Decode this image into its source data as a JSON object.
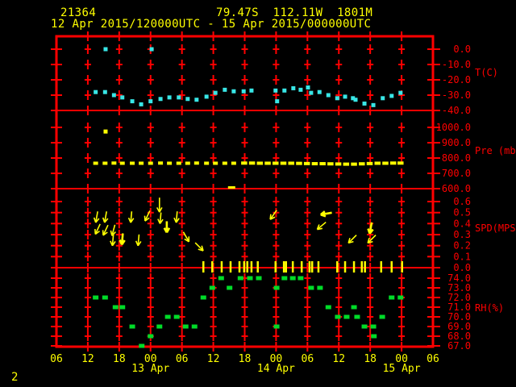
{
  "header": {
    "station_id": "21364",
    "location": "79.47S  112.11W  1801M",
    "time_range": "12 Apr 2015/120000UTC - 15 Apr 2015/000000UTC"
  },
  "footer": {
    "page_number": "2"
  },
  "colors": {
    "background": "#000000",
    "grid": "#ff0000",
    "axis_text": "#ff0000",
    "label_text": "#ffff00",
    "temperature": "#38e6e6",
    "pressure": "#ffff00",
    "wind": "#ffff00",
    "humidity": "#00dc28"
  },
  "x_axis": {
    "unit_note": "hours since 12 Apr 2015 00:00 UTC; axis spans 12 Apr 06h to 15 Apr 06h",
    "hours_start": 6,
    "hours_end": 78,
    "hour_labels": [
      "06",
      "12",
      "18",
      "00",
      "06",
      "12",
      "18",
      "00",
      "06",
      "12",
      "18",
      "00",
      "06"
    ],
    "date_labels": [
      {
        "label": "13 Apr",
        "hour": 24
      },
      {
        "label": "14 Apr",
        "hour": 48
      },
      {
        "label": "15 Apr",
        "hour": 72
      }
    ]
  },
  "panels": [
    {
      "id": "temperature",
      "label": "T(C)",
      "ticks": [
        "0.0",
        "-10.0",
        "-20.0",
        "-30.0",
        "-40.0"
      ]
    },
    {
      "id": "pressure",
      "label": "Pre (mb)",
      "ticks": [
        "1000.0",
        "900.0",
        "800.0",
        "700.0",
        "600.0"
      ]
    },
    {
      "id": "wind_speed",
      "label": "SPD(MPS)",
      "ticks": [
        "0.6",
        "0.5",
        "0.4",
        "0.3",
        "0.2",
        "0.1",
        "0.0"
      ]
    },
    {
      "id": "humidity",
      "label": "RH(%)",
      "ticks": [
        "74.0",
        "73.0",
        "72.0",
        "71.0",
        "70.0",
        "69.0",
        "68.0",
        "67.0"
      ]
    }
  ],
  "chart_data": [
    {
      "type": "scatter",
      "series": "temperature",
      "ylabel": "T(C)",
      "ylim": [
        -40,
        0
      ],
      "x_unit": "hours since 12 Apr 00UTC",
      "points": [
        [
          13.5,
          -28
        ],
        [
          15.3,
          -28
        ],
        [
          17.0,
          -30
        ],
        [
          18.6,
          -31.5
        ],
        [
          20.5,
          -34
        ],
        [
          22.2,
          -36
        ],
        [
          24.0,
          -34
        ],
        [
          25.9,
          -32.5
        ],
        [
          27.6,
          -31.5
        ],
        [
          29.4,
          -31.5
        ],
        [
          31.1,
          -32.5
        ],
        [
          32.8,
          -33
        ],
        [
          34.7,
          -31
        ],
        [
          36.4,
          -28.5
        ],
        [
          38.2,
          -26.5
        ],
        [
          39.9,
          -27.5
        ],
        [
          41.8,
          -27.5
        ],
        [
          43.3,
          -27
        ],
        [
          47.9,
          -27
        ],
        [
          48.2,
          -34
        ],
        [
          49.6,
          -27
        ],
        [
          51.3,
          -25.5
        ],
        [
          52.7,
          -26.5
        ],
        [
          54.1,
          -25
        ],
        [
          54.7,
          -28.5
        ],
        [
          56.3,
          -28
        ],
        [
          58.0,
          -30
        ],
        [
          59.7,
          -32
        ],
        [
          61.2,
          -31
        ],
        [
          62.7,
          -32
        ],
        [
          63.2,
          -33
        ],
        [
          64.9,
          -35.5
        ],
        [
          66.6,
          -36.5
        ],
        [
          68.4,
          -32
        ],
        [
          70.1,
          -30.5
        ],
        [
          71.8,
          -28.5
        ]
      ],
      "outliers": [
        [
          15.4,
          0
        ],
        [
          24.2,
          0
        ]
      ]
    },
    {
      "type": "scatter",
      "series": "pressure",
      "ylabel": "Pre (mb)",
      "ylim": [
        600,
        1000
      ],
      "x_unit": "hours since 12 Apr 00UTC",
      "points": [
        [
          13.5,
          766
        ],
        [
          15.3,
          766
        ],
        [
          17.0,
          767
        ],
        [
          18.6,
          766
        ],
        [
          20.5,
          766
        ],
        [
          22.2,
          766
        ],
        [
          24.0,
          766
        ],
        [
          25.9,
          767
        ],
        [
          27.6,
          766
        ],
        [
          29.4,
          766
        ],
        [
          31.1,
          766
        ],
        [
          32.8,
          767
        ],
        [
          34.7,
          766
        ],
        [
          36.4,
          766
        ],
        [
          38.2,
          766
        ],
        [
          39.9,
          766
        ],
        [
          41.9,
          767
        ],
        [
          43.4,
          767
        ],
        [
          44.9,
          766
        ],
        [
          46.4,
          766
        ],
        [
          47.9,
          766
        ],
        [
          49.4,
          766
        ],
        [
          50.9,
          766
        ],
        [
          52.4,
          765
        ],
        [
          53.9,
          764
        ],
        [
          55.4,
          763
        ],
        [
          56.9,
          763
        ],
        [
          58.4,
          762
        ],
        [
          59.9,
          761
        ],
        [
          61.4,
          760
        ],
        [
          62.9,
          760
        ],
        [
          64.4,
          762
        ],
        [
          65.9,
          764
        ],
        [
          67.4,
          766
        ],
        [
          68.9,
          766
        ],
        [
          70.4,
          767
        ],
        [
          71.8,
          767
        ]
      ],
      "outliers": [
        [
          15.4,
          973
        ],
        [
          39.5,
          600
        ]
      ]
    },
    {
      "type": "wind",
      "series": "wind_speed",
      "ylabel": "SPD(MPS)",
      "ylim": [
        0,
        0.6
      ],
      "x_unit": "hours since 12 Apr 00UTC",
      "arrow_note": "[hour, speed_mps, screen_direction_deg (0=right,90=down,180=left), style]",
      "arrows": [
        [
          13.7,
          0.46,
          100,
          ""
        ],
        [
          15.4,
          0.46,
          100,
          ""
        ],
        [
          13.9,
          0.35,
          115,
          ""
        ],
        [
          15.4,
          0.34,
          115,
          ""
        ],
        [
          16.9,
          0.34,
          105,
          ""
        ],
        [
          16.8,
          0.25,
          95,
          ""
        ],
        [
          18.6,
          0.26,
          95,
          "bold"
        ],
        [
          20.3,
          0.46,
          95,
          ""
        ],
        [
          21.7,
          0.25,
          95,
          ""
        ],
        [
          23.4,
          0.47,
          115,
          ""
        ],
        [
          25.7,
          0.57,
          90,
          "long"
        ],
        [
          25.9,
          0.45,
          95,
          ""
        ],
        [
          27.1,
          0.37,
          90,
          "bold"
        ],
        [
          29.0,
          0.46,
          95,
          ""
        ],
        [
          30.8,
          0.28,
          60,
          ""
        ],
        [
          33.3,
          0.19,
          45,
          ""
        ],
        [
          47.5,
          0.48,
          125,
          ""
        ],
        [
          57.6,
          0.49,
          170,
          "bold"
        ],
        [
          56.7,
          0.38,
          140,
          ""
        ],
        [
          62.6,
          0.26,
          135,
          ""
        ],
        [
          66.1,
          0.36,
          100,
          "bold"
        ],
        [
          66.3,
          0.26,
          135,
          ""
        ]
      ],
      "calm_tick_hours": [
        34.1,
        35.8,
        37.6,
        39.3,
        41.0,
        41.9,
        42.5,
        43.3,
        44.5,
        47.9,
        49.5,
        49.9,
        51.2,
        52.9,
        54.4,
        54.9,
        56.1,
        59.7,
        61.2,
        62.9,
        64.4,
        65.0,
        68.1,
        70.1,
        72.1
      ]
    },
    {
      "type": "scatter",
      "series": "relative_humidity",
      "ylabel": "RH(%)",
      "ylim": [
        67,
        74
      ],
      "x_unit": "hours since 12 Apr 00UTC",
      "points": [
        [
          13.5,
          72
        ],
        [
          15.3,
          72
        ],
        [
          17.3,
          71
        ],
        [
          18.6,
          71
        ],
        [
          20.5,
          69
        ],
        [
          22.3,
          67
        ],
        [
          24.0,
          68
        ],
        [
          25.7,
          69
        ],
        [
          27.3,
          70
        ],
        [
          29.0,
          70
        ],
        [
          30.7,
          69
        ],
        [
          32.4,
          69
        ],
        [
          34.1,
          72
        ],
        [
          35.8,
          73
        ],
        [
          37.5,
          74
        ],
        [
          39.1,
          73
        ],
        [
          41.2,
          74
        ],
        [
          43.0,
          74
        ],
        [
          44.7,
          74
        ],
        [
          48.1,
          73
        ],
        [
          48.1,
          69
        ],
        [
          49.6,
          74
        ],
        [
          51.2,
          74
        ],
        [
          52.7,
          74
        ],
        [
          54.7,
          73
        ],
        [
          56.4,
          73
        ],
        [
          58.0,
          71
        ],
        [
          59.8,
          70
        ],
        [
          61.5,
          70
        ],
        [
          62.9,
          71
        ],
        [
          63.5,
          70
        ],
        [
          64.9,
          69
        ],
        [
          66.6,
          69
        ],
        [
          66.7,
          68
        ],
        [
          68.3,
          70
        ],
        [
          70.1,
          72
        ],
        [
          71.8,
          72
        ]
      ]
    }
  ]
}
